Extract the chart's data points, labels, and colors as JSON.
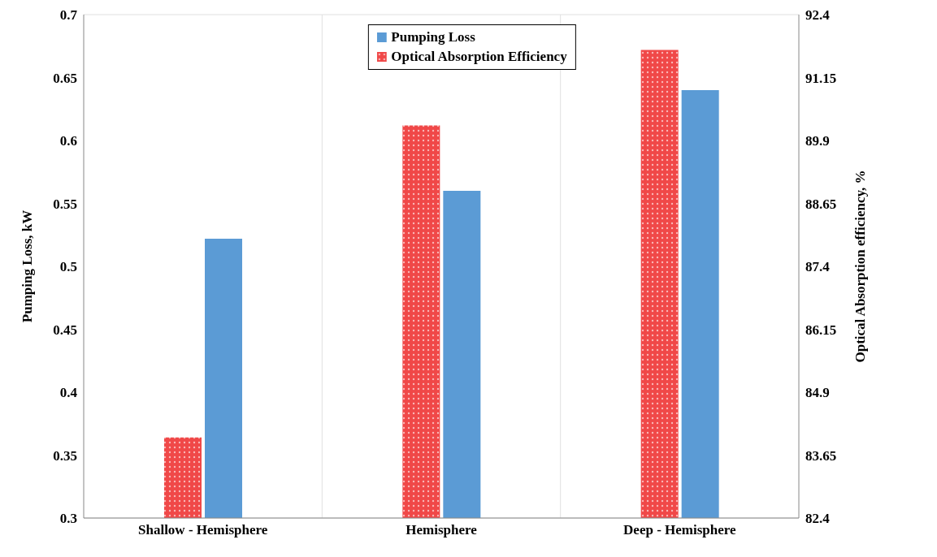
{
  "chart_data": {
    "type": "bar",
    "xlabel": null,
    "ylabel": "Pumping Loss, kW",
    "y2label": "Optical Absorption efficiency, %",
    "categories": [
      "Shallow - Hemisphere",
      "Hemisphere",
      "Deep - Hemisphere"
    ],
    "series": [
      {
        "name": "Pumping Loss",
        "color": "#5b9bd5",
        "values": [
          0.522,
          0.56,
          0.64
        ]
      },
      {
        "name": "Optical Absorption Efficiency",
        "color": "#f04848",
        "values": [
          84.0,
          90.2,
          91.7
        ],
        "axis": "y2"
      }
    ],
    "ylim": [
      0.3,
      0.7
    ],
    "yticks": [
      0.3,
      0.35,
      0.4,
      0.45,
      0.5,
      0.55,
      0.6,
      0.65,
      0.7
    ],
    "y2lim": [
      82.4,
      92.4
    ],
    "y2ticks": [
      82.4,
      83.65,
      84.9,
      86.15,
      87.4,
      88.65,
      89.9,
      91.15,
      92.4
    ],
    "grid": true,
    "legend": "top"
  }
}
